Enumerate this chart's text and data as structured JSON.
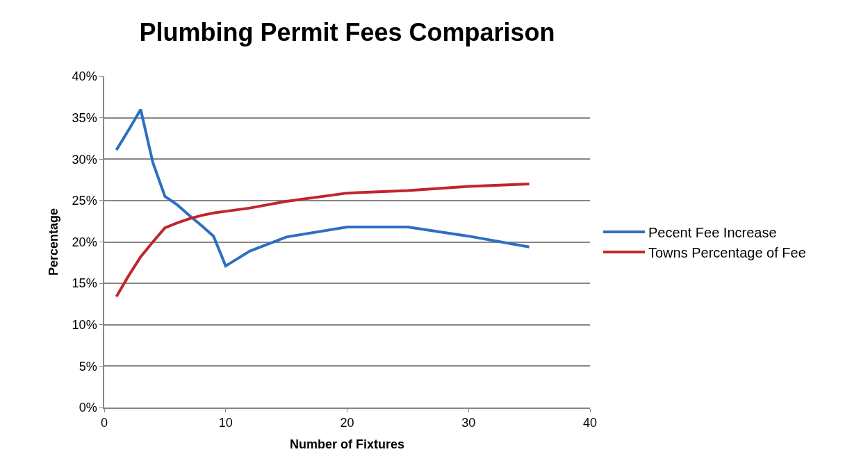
{
  "chart_data": {
    "type": "line",
    "title": "Plumbing Permit Fees Comparison",
    "xlabel": "Number of Fixtures",
    "ylabel": "Percentage",
    "x": [
      1,
      2,
      3,
      4,
      5,
      6,
      7,
      8,
      9,
      10,
      12,
      15,
      20,
      25,
      30,
      35
    ],
    "series": [
      {
        "name": "Pecent Fee Increase",
        "color": "#2e6fc0",
        "values": [
          31.1,
          33.5,
          36.0,
          29.6,
          25.5,
          24.5,
          23.2,
          22.0,
          20.7,
          17.1,
          18.9,
          20.6,
          21.8,
          21.8,
          20.7,
          19.4
        ]
      },
      {
        "name": "Towns Percentage of Fee",
        "color": "#c0262d",
        "values": [
          13.4,
          15.9,
          18.2,
          20.0,
          21.7,
          22.3,
          22.8,
          23.2,
          23.5,
          23.7,
          24.1,
          24.9,
          25.9,
          26.2,
          26.7,
          27.0
        ]
      }
    ],
    "xlim": [
      0,
      40
    ],
    "xticks": [
      0,
      10,
      20,
      30,
      40
    ],
    "ylim": [
      0,
      40
    ],
    "yticks": [
      {
        "value": 0,
        "label": "0%"
      },
      {
        "value": 5,
        "label": "5%"
      },
      {
        "value": 10,
        "label": "10%"
      },
      {
        "value": 15,
        "label": "15%"
      },
      {
        "value": 20,
        "label": "20%"
      },
      {
        "value": 25,
        "label": "25%"
      },
      {
        "value": 30,
        "label": "30%"
      },
      {
        "value": 35,
        "label": "35%"
      },
      {
        "value": 40,
        "label": "40%"
      }
    ],
    "grid": "y",
    "legend": "right",
    "marker": "none",
    "line_style": "solid"
  }
}
